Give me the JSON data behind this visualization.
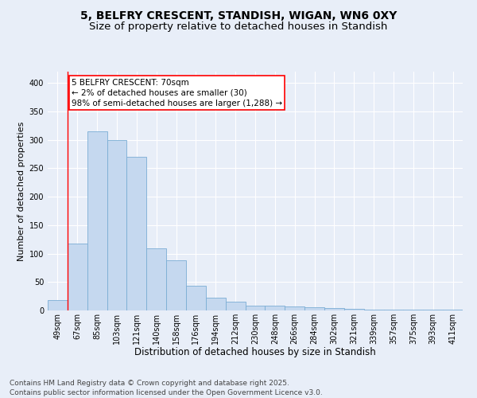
{
  "title1": "5, BELFRY CRESCENT, STANDISH, WIGAN, WN6 0XY",
  "title2": "Size of property relative to detached houses in Standish",
  "xlabel": "Distribution of detached houses by size in Standish",
  "ylabel": "Number of detached properties",
  "categories": [
    "49sqm",
    "67sqm",
    "85sqm",
    "103sqm",
    "121sqm",
    "140sqm",
    "158sqm",
    "176sqm",
    "194sqm",
    "212sqm",
    "230sqm",
    "248sqm",
    "266sqm",
    "284sqm",
    "302sqm",
    "321sqm",
    "339sqm",
    "357sqm",
    "375sqm",
    "393sqm",
    "411sqm"
  ],
  "values": [
    18,
    118,
    315,
    300,
    270,
    109,
    88,
    44,
    22,
    15,
    9,
    8,
    7,
    6,
    4,
    3,
    2,
    2,
    1,
    1,
    2
  ],
  "bar_color": "#c5d8ef",
  "bar_edge_color": "#7aadd4",
  "annotation_text": "5 BELFRY CRESCENT: 70sqm\n← 2% of detached houses are smaller (30)\n98% of semi-detached houses are larger (1,288) →",
  "vline_x_index": 1,
  "ylim": [
    0,
    420
  ],
  "yticks": [
    0,
    50,
    100,
    150,
    200,
    250,
    300,
    350,
    400
  ],
  "background_color": "#e8eef8",
  "grid_color": "#ffffff",
  "footer_text": "Contains HM Land Registry data © Crown copyright and database right 2025.\nContains public sector information licensed under the Open Government Licence v3.0.",
  "title1_fontsize": 10,
  "title2_fontsize": 9.5,
  "xlabel_fontsize": 8.5,
  "ylabel_fontsize": 8,
  "annotation_fontsize": 7.5,
  "footer_fontsize": 6.5,
  "tick_fontsize": 7
}
